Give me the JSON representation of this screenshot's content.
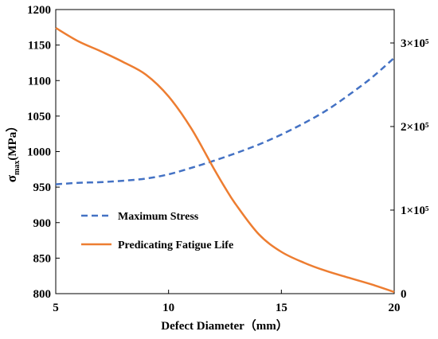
{
  "chart_data": {
    "type": "line",
    "title": "",
    "xlabel": "Defect Diameter（mm）",
    "ylabel": "σmax(MPa)",
    "ylabel_main": "σ",
    "ylabel_sub": "max",
    "ylabel_tail": "(MPa）",
    "y2label": "",
    "xlim": [
      5,
      20
    ],
    "ylim": [
      800,
      1200
    ],
    "y2lim": [
      0,
      340000
    ],
    "x_ticks": [
      "5",
      "10",
      "15",
      "20"
    ],
    "x_tick_values": [
      5,
      10,
      15,
      20
    ],
    "y_ticks": [
      "800",
      "850",
      "900",
      "950",
      "1000",
      "1050",
      "1100",
      "1150",
      "1200"
    ],
    "y_tick_values": [
      800,
      850,
      900,
      950,
      1000,
      1050,
      1100,
      1150,
      1200
    ],
    "y2_ticks": [
      "0",
      "1×10⁵",
      "2×10⁵",
      "3×10⁵"
    ],
    "y2_tick_values": [
      0,
      100000,
      200000,
      300000
    ],
    "grid": false,
    "legend_position": "lower-left",
    "series": [
      {
        "name": "Maximum Stress",
        "axis": "left",
        "color": "#4472C4",
        "style": "dashed",
        "x": [
          5,
          6,
          7,
          8,
          9,
          10,
          11,
          12,
          13,
          14,
          15,
          16,
          17,
          18,
          19,
          20
        ],
        "y": [
          954,
          956,
          957,
          959,
          962,
          968,
          977,
          987,
          998,
          1010,
          1024,
          1040,
          1058,
          1080,
          1104,
          1132
        ]
      },
      {
        "name": "Predicating Fatigue Life",
        "axis": "right",
        "color": "#ED7D31",
        "style": "solid",
        "x": [
          5,
          6,
          7,
          8,
          9,
          10,
          11,
          12,
          12.5,
          13,
          14,
          15,
          16,
          17,
          18,
          19,
          20
        ],
        "y": [
          318000,
          302000,
          290000,
          277000,
          262000,
          236000,
          198000,
          150000,
          127000,
          106000,
          71000,
          50000,
          37000,
          27000,
          19000,
          11000,
          2000
        ]
      }
    ]
  }
}
